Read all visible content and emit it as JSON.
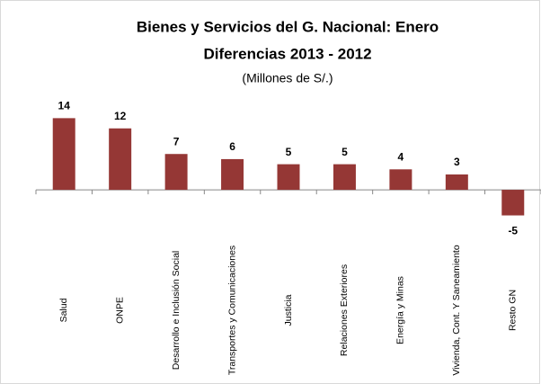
{
  "chart_data": {
    "type": "bar",
    "title": "Bienes y Servicios del G. Nacional: Enero",
    "subtitle": "Diferencias 2013 - 2012",
    "units": "(Millones de S/.)",
    "categories": [
      "Salud",
      "ONPE",
      "Desarrollo e Inclusión Social",
      "Transportes y Comunicaciones",
      "Justicia",
      "Relaciones Exteriores",
      "Energía y Minas",
      "Vivienda, Cont. Y Saneamiento",
      "Resto GN"
    ],
    "values": [
      14,
      12,
      7,
      6,
      5,
      5,
      4,
      3,
      -5
    ],
    "color": "#953735",
    "ylim": [
      -10,
      16
    ]
  }
}
